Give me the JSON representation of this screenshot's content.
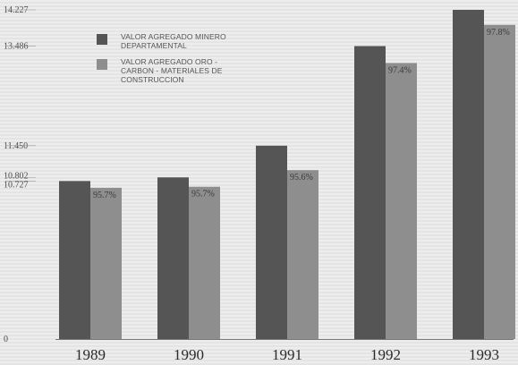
{
  "chart_data": {
    "type": "bar",
    "categories": [
      "1989",
      "1990",
      "1991",
      "1992",
      "1993"
    ],
    "series": [
      {
        "name": "VALOR AGREGADO MINERO DEPARTAMENTAL",
        "legend_lines": [
          "VALOR AGREGADO MINERO",
          "DEPARTAMENTAL"
        ],
        "color": "#555555",
        "values": [
          10.727,
          10.802,
          11.45,
          13.486,
          14.227
        ]
      },
      {
        "name": "VALOR AGREGADO ORO - CARBON - MATERIALES DE CONSTRUCCION",
        "legend_lines": [
          "VALOR AGREGADO ORO -",
          "CARBON    - MATERIALES DE",
          "CONSTRUCCION"
        ],
        "color": "#8e8e8e",
        "values": [
          10.27,
          10.34,
          10.95,
          13.14,
          13.92
        ]
      }
    ],
    "pct_labels": [
      "95.7%",
      "95.7%",
      "95.6%",
      "97.4%",
      "97.8%"
    ],
    "ytick_labels": [
      "14.227",
      "13.486",
      "11.450",
      "10.802",
      "10.727",
      "0"
    ],
    "ytick_values": [
      14.227,
      13.486,
      11.45,
      10.802,
      10.727,
      0
    ],
    "y_axis_type": "broken",
    "y_break": {
      "low_fraction": 0.48,
      "low_value": 10.727
    },
    "legend_position": "top-left",
    "grid": false
  }
}
